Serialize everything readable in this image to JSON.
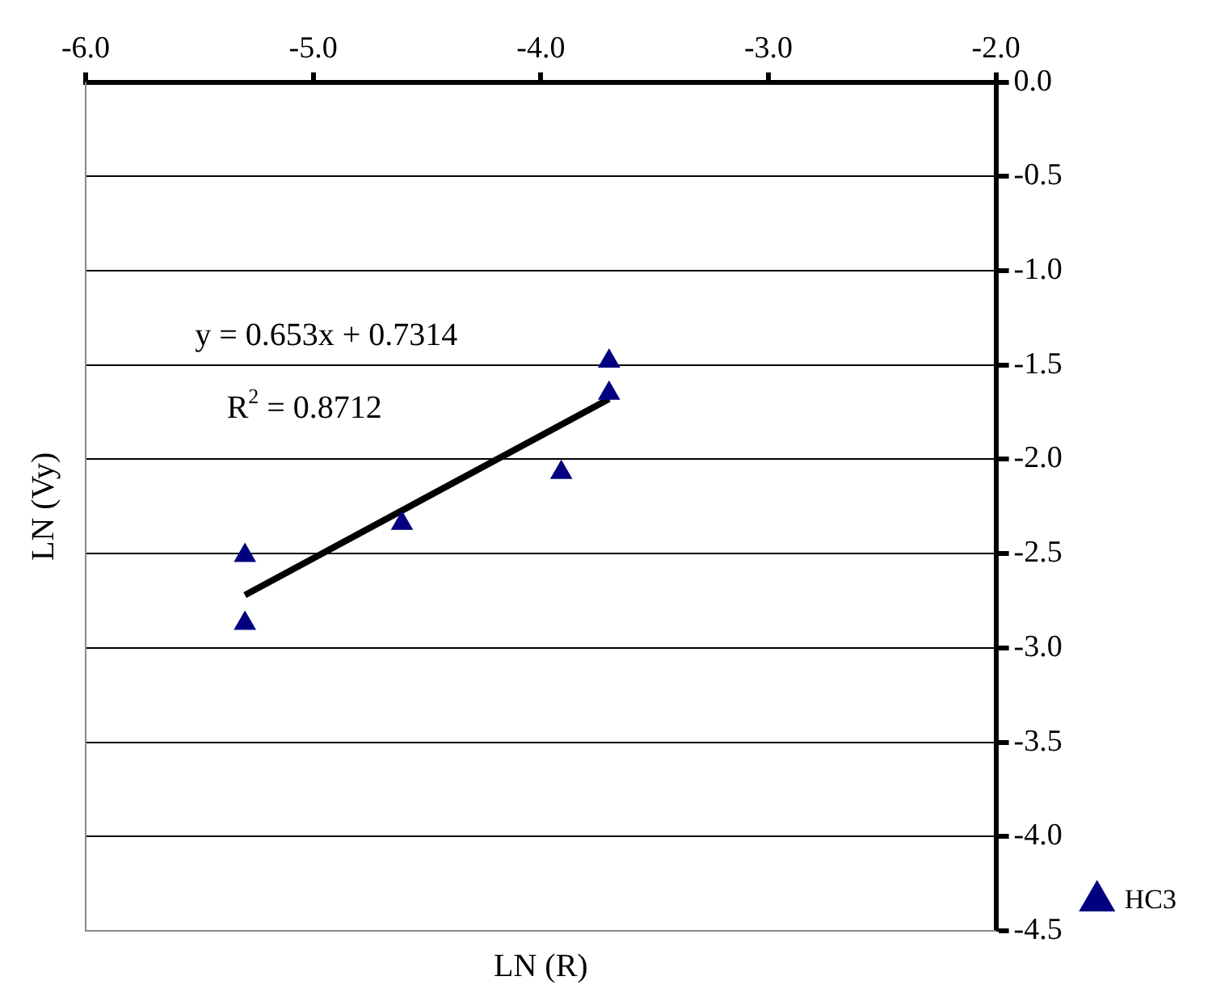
{
  "chart_data": {
    "type": "scatter",
    "xlabel": "LN (R)",
    "ylabel": "LN (Vy)",
    "xlim": [
      -6,
      -2
    ],
    "xticks": [
      {
        "value": -6,
        "label": "-6.0"
      },
      {
        "value": -5,
        "label": "-5.0"
      },
      {
        "value": -4,
        "label": "-4.0"
      },
      {
        "value": -3,
        "label": "-3.0"
      },
      {
        "value": -2,
        "label": "-2.0"
      }
    ],
    "ylim": [
      -4.5,
      0
    ],
    "yticks": [
      {
        "value": 0,
        "label": "0.0"
      },
      {
        "value": -0.5,
        "label": "-0.5"
      },
      {
        "value": -1,
        "label": "-1.0"
      },
      {
        "value": -1.5,
        "label": "-1.5"
      },
      {
        "value": -2,
        "label": "-2.0"
      },
      {
        "value": -2.5,
        "label": "-2.5"
      },
      {
        "value": -3,
        "label": "-3.0"
      },
      {
        "value": -3.5,
        "label": "-3.5"
      },
      {
        "value": -4,
        "label": "-4.0"
      },
      {
        "value": -4.5,
        "label": "-4.5"
      }
    ],
    "grid": "y",
    "legend": "bottom right",
    "marker": "triangle",
    "series": [
      {
        "name": "HC3",
        "type": "scatter",
        "color": "#000080",
        "x": [
          -5.3,
          -5.3,
          -4.61,
          -3.91,
          -3.7,
          -3.7
        ],
        "values": [
          -2.51,
          -2.87,
          -2.34,
          -2.07,
          -1.48,
          -1.65
        ]
      },
      {
        "type": "line",
        "color": "#000000",
        "marker": "none",
        "x": [
          -5.3,
          -3.7
        ],
        "values": [
          -2.72,
          -1.68
        ]
      }
    ],
    "annotations": [
      "y = 0.653x + 0.7314",
      "R$^{2}$ = 0.8712"
    ]
  }
}
